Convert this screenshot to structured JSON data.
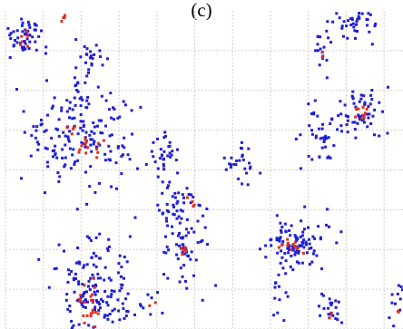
{
  "panel_label": "(c)",
  "colors": {
    "background": "#ffffff",
    "grid": "#cfcfcf",
    "blue_points": "#1f1fd6",
    "red_points": "#e0301e"
  },
  "chart_data": {
    "type": "scatter",
    "title": "",
    "xlabel": "",
    "ylabel": "",
    "grid": true,
    "xlim": [
      0,
      10.5
    ],
    "ylim": [
      0,
      8
    ],
    "legend": "none",
    "x_gridlines": [
      0,
      1,
      2,
      3,
      4,
      5,
      6,
      7,
      8,
      9,
      10
    ],
    "y_gridlines": [
      0,
      1,
      2,
      3,
      4,
      5,
      6,
      7
    ],
    "marker_size": 2,
    "clusters": [
      {
        "color": "blue",
        "cx": 0.45,
        "cy": 7.3,
        "sx": 0.3,
        "sy": 0.3,
        "n": 55
      },
      {
        "color": "red",
        "cx": 0.5,
        "cy": 7.25,
        "sx": 0.1,
        "sy": 0.15,
        "n": 6
      },
      {
        "color": "red",
        "cx": 1.55,
        "cy": 7.85,
        "sx": 0.05,
        "sy": 0.08,
        "n": 4
      },
      {
        "color": "blue",
        "cx": 2.2,
        "cy": 6.8,
        "sx": 0.22,
        "sy": 0.25,
        "n": 22
      },
      {
        "color": "blue",
        "cx": 1.9,
        "cy": 6.0,
        "sx": 0.1,
        "sy": 0.2,
        "n": 10
      },
      {
        "color": "blue",
        "cx": 2.2,
        "cy": 4.8,
        "sx": 0.65,
        "sy": 0.65,
        "n": 150
      },
      {
        "color": "red",
        "cx": 2.35,
        "cy": 4.55,
        "sx": 0.15,
        "sy": 0.15,
        "n": 14
      },
      {
        "color": "red",
        "cx": 1.75,
        "cy": 5.05,
        "sx": 0.08,
        "sy": 0.08,
        "n": 4
      },
      {
        "color": "blue",
        "cx": 0.9,
        "cy": 4.7,
        "sx": 0.25,
        "sy": 0.3,
        "n": 16
      },
      {
        "color": "blue",
        "cx": 2.3,
        "cy": 1.0,
        "sx": 0.45,
        "sy": 0.65,
        "n": 155
      },
      {
        "color": "red",
        "cx": 2.2,
        "cy": 0.7,
        "sx": 0.15,
        "sy": 0.28,
        "n": 22
      },
      {
        "color": "blue",
        "cx": 3.7,
        "cy": 0.65,
        "sx": 0.3,
        "sy": 0.25,
        "n": 10
      },
      {
        "color": "red",
        "cx": 3.85,
        "cy": 0.65,
        "sx": 0.05,
        "sy": 0.05,
        "n": 2
      },
      {
        "color": "blue",
        "cx": 4.25,
        "cy": 4.3,
        "sx": 0.18,
        "sy": 0.35,
        "n": 32
      },
      {
        "color": "blue",
        "cx": 4.6,
        "cy": 2.5,
        "sx": 0.35,
        "sy": 0.75,
        "n": 95
      },
      {
        "color": "red",
        "cx": 4.9,
        "cy": 3.2,
        "sx": 0.06,
        "sy": 0.08,
        "n": 4
      },
      {
        "color": "red",
        "cx": 4.7,
        "cy": 2.0,
        "sx": 0.08,
        "sy": 0.12,
        "n": 6
      },
      {
        "color": "blue",
        "cx": 6.25,
        "cy": 4.2,
        "sx": 0.22,
        "sy": 0.28,
        "n": 26
      },
      {
        "color": "blue",
        "cx": 7.6,
        "cy": 2.2,
        "sx": 0.4,
        "sy": 0.28,
        "n": 95
      },
      {
        "color": "red",
        "cx": 7.55,
        "cy": 2.15,
        "sx": 0.2,
        "sy": 0.1,
        "n": 14
      },
      {
        "color": "blue",
        "cx": 7.2,
        "cy": 0.9,
        "sx": 0.12,
        "sy": 0.45,
        "n": 18
      },
      {
        "color": "blue",
        "cx": 8.25,
        "cy": 4.85,
        "sx": 0.2,
        "sy": 0.4,
        "n": 36
      },
      {
        "color": "blue",
        "cx": 8.35,
        "cy": 6.95,
        "sx": 0.1,
        "sy": 0.25,
        "n": 16
      },
      {
        "color": "red",
        "cx": 8.3,
        "cy": 7.0,
        "sx": 0.03,
        "sy": 0.05,
        "n": 2
      },
      {
        "color": "blue",
        "cx": 9.2,
        "cy": 7.7,
        "sx": 0.35,
        "sy": 0.25,
        "n": 45
      },
      {
        "color": "blue",
        "cx": 9.35,
        "cy": 5.5,
        "sx": 0.3,
        "sy": 0.35,
        "n": 60
      },
      {
        "color": "red",
        "cx": 9.4,
        "cy": 5.45,
        "sx": 0.1,
        "sy": 0.12,
        "n": 10
      },
      {
        "color": "blue",
        "cx": 8.6,
        "cy": 0.5,
        "sx": 0.18,
        "sy": 0.22,
        "n": 22
      },
      {
        "color": "red",
        "cx": 8.6,
        "cy": 0.35,
        "sx": 0.05,
        "sy": 0.05,
        "n": 2
      },
      {
        "color": "blue",
        "cx": 10.35,
        "cy": 0.7,
        "sx": 0.1,
        "sy": 0.35,
        "n": 12
      },
      {
        "color": "red",
        "cx": 10.4,
        "cy": 0.45,
        "sx": 0.03,
        "sy": 0.05,
        "n": 2
      }
    ]
  }
}
